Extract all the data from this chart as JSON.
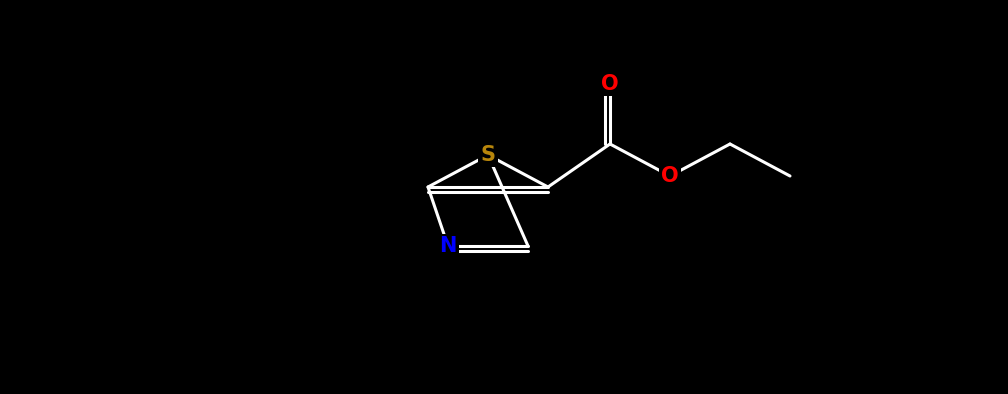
{
  "bg_color": "#000000",
  "bond_color": "#ffffff",
  "bond_width": 2.2,
  "atom_colors": {
    "S": "#b8860b",
    "N": "#0000ff",
    "O": "#ff0000",
    "H": "#ffffff"
  },
  "font_size": 15,
  "fig_width": 10.08,
  "fig_height": 3.94,
  "dpi": 100
}
